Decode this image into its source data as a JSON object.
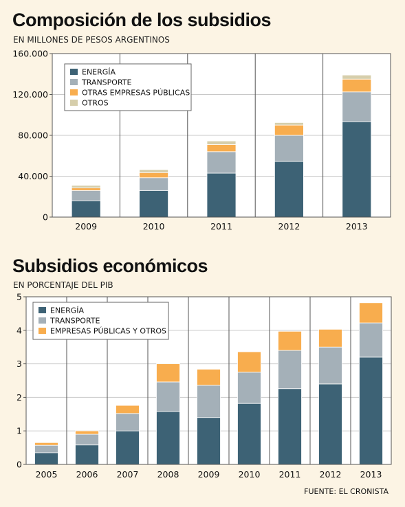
{
  "source": "FUENTE: EL CRONISTA",
  "colors": {
    "energia": "#3d6275",
    "transporte": "#a4b0b8",
    "otras": "#f8ad4e",
    "otros": "#d6ceab",
    "background": "#fcf4e4"
  },
  "chart_data": [
    {
      "type": "bar",
      "stacked": true,
      "title": "Composición de los subsidios",
      "subtitle": "EN MILLONES DE PESOS ARGENTINOS",
      "categories": [
        "2009",
        "2010",
        "2011",
        "2012",
        "2013"
      ],
      "series": [
        {
          "name": "ENERGÍA",
          "values": [
            16000,
            26000,
            43000,
            54500,
            93500
          ]
        },
        {
          "name": "TRANSPORTE",
          "values": [
            10000,
            12500,
            21000,
            25500,
            29000
          ]
        },
        {
          "name": "OTRAS EMPRESAS PÚBLICAS",
          "values": [
            2500,
            5000,
            7000,
            10000,
            12500
          ]
        },
        {
          "name": "OTROS",
          "values": [
            2500,
            3000,
            3500,
            2500,
            4000
          ]
        }
      ],
      "ylim": [
        0,
        160000
      ],
      "yticks": [
        0,
        40000,
        80000,
        120000,
        160000
      ],
      "ytick_labels": [
        "0",
        "40.000",
        "80.000",
        "120.000",
        "160.000"
      ],
      "legend_position": "top-left",
      "grid": "vertical separators"
    },
    {
      "type": "bar",
      "stacked": true,
      "title": "Subsidios económicos",
      "subtitle": "EN PORCENTAJE DEL PIB",
      "categories": [
        "2005",
        "2006",
        "2007",
        "2008",
        "2009",
        "2010",
        "2011",
        "2012",
        "2013"
      ],
      "series": [
        {
          "name": "ENERGÍA",
          "values": [
            0.35,
            0.58,
            1.0,
            1.58,
            1.4,
            1.82,
            2.26,
            2.4,
            3.2
          ]
        },
        {
          "name": "TRANSPORTE",
          "values": [
            0.22,
            0.32,
            0.52,
            0.88,
            0.96,
            0.93,
            1.14,
            1.1,
            1.02
          ]
        },
        {
          "name": "EMPRESAS PÚBLICAS Y OTROS",
          "values": [
            0.08,
            0.1,
            0.24,
            0.54,
            0.48,
            0.61,
            0.57,
            0.53,
            0.6
          ]
        }
      ],
      "ylim": [
        0,
        5
      ],
      "yticks": [
        0,
        1,
        2,
        3,
        4,
        5
      ],
      "ytick_labels": [
        "0",
        "1",
        "2",
        "3",
        "4",
        "5"
      ],
      "legend_position": "top-left",
      "grid": "vertical separators"
    }
  ]
}
